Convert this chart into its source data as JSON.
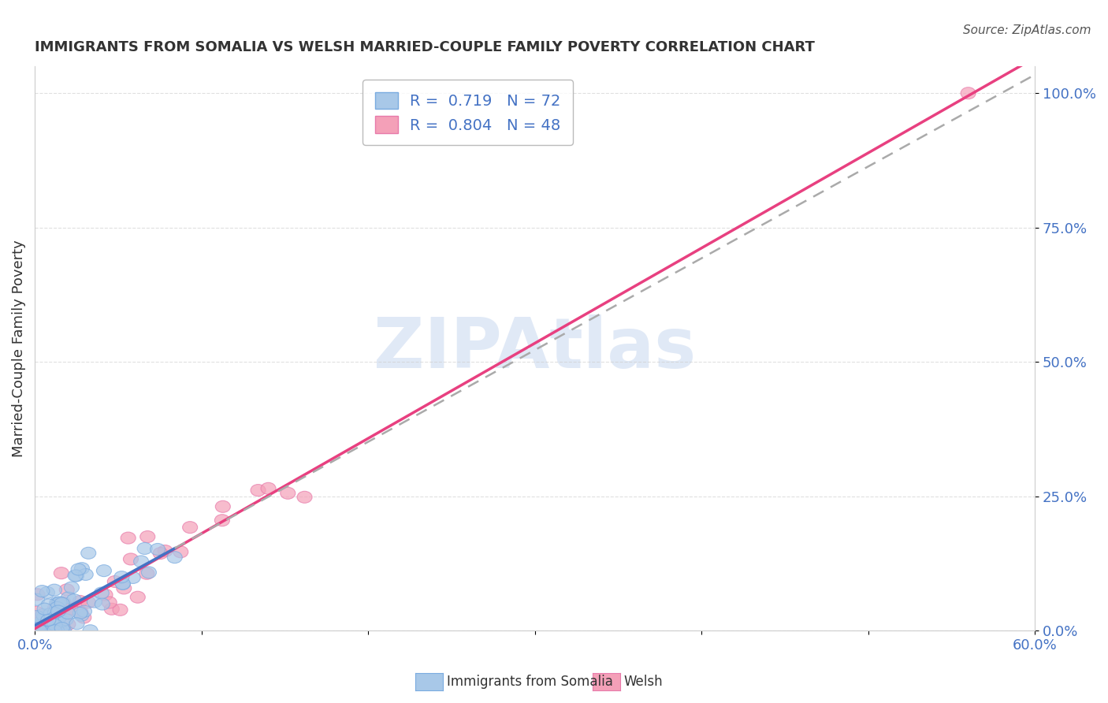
{
  "title": "IMMIGRANTS FROM SOMALIA VS WELSH MARRIED-COUPLE FAMILY POVERTY CORRELATION CHART",
  "source": "Source: ZipAtlas.com",
  "ylabel": "Married-Couple Family Poverty",
  "xlim": [
    0.0,
    0.6
  ],
  "ylim": [
    0.0,
    1.05
  ],
  "ytick_labels": [
    "0.0%",
    "25.0%",
    "50.0%",
    "75.0%",
    "100.0%"
  ],
  "ytick_vals": [
    0.0,
    0.25,
    0.5,
    0.75,
    1.0
  ],
  "xtick_labels": [
    "0.0%",
    "",
    "",
    "",
    "",
    "",
    "60.0%"
  ],
  "xtick_vals": [
    0.0,
    0.1,
    0.2,
    0.3,
    0.4,
    0.5,
    0.6
  ],
  "R1": 0.719,
  "N1": 72,
  "R2": 0.804,
  "N2": 48,
  "series1_color": "#a8c8e8",
  "series2_color": "#f4a0b8",
  "series1_edge": "#7aabe0",
  "series2_edge": "#e87aaa",
  "line1_color": "#4472c4",
  "line2_color": "#e84080",
  "line_dashed_color": "#aaaaaa",
  "background_color": "#ffffff",
  "grid_color": "#cccccc",
  "watermark_color": "#c8d8f0",
  "text_color": "#333333",
  "label_color": "#4472c4",
  "source_color": "#555555",
  "title_fontsize": 13,
  "label_fontsize": 13,
  "legend_fontsize": 14
}
